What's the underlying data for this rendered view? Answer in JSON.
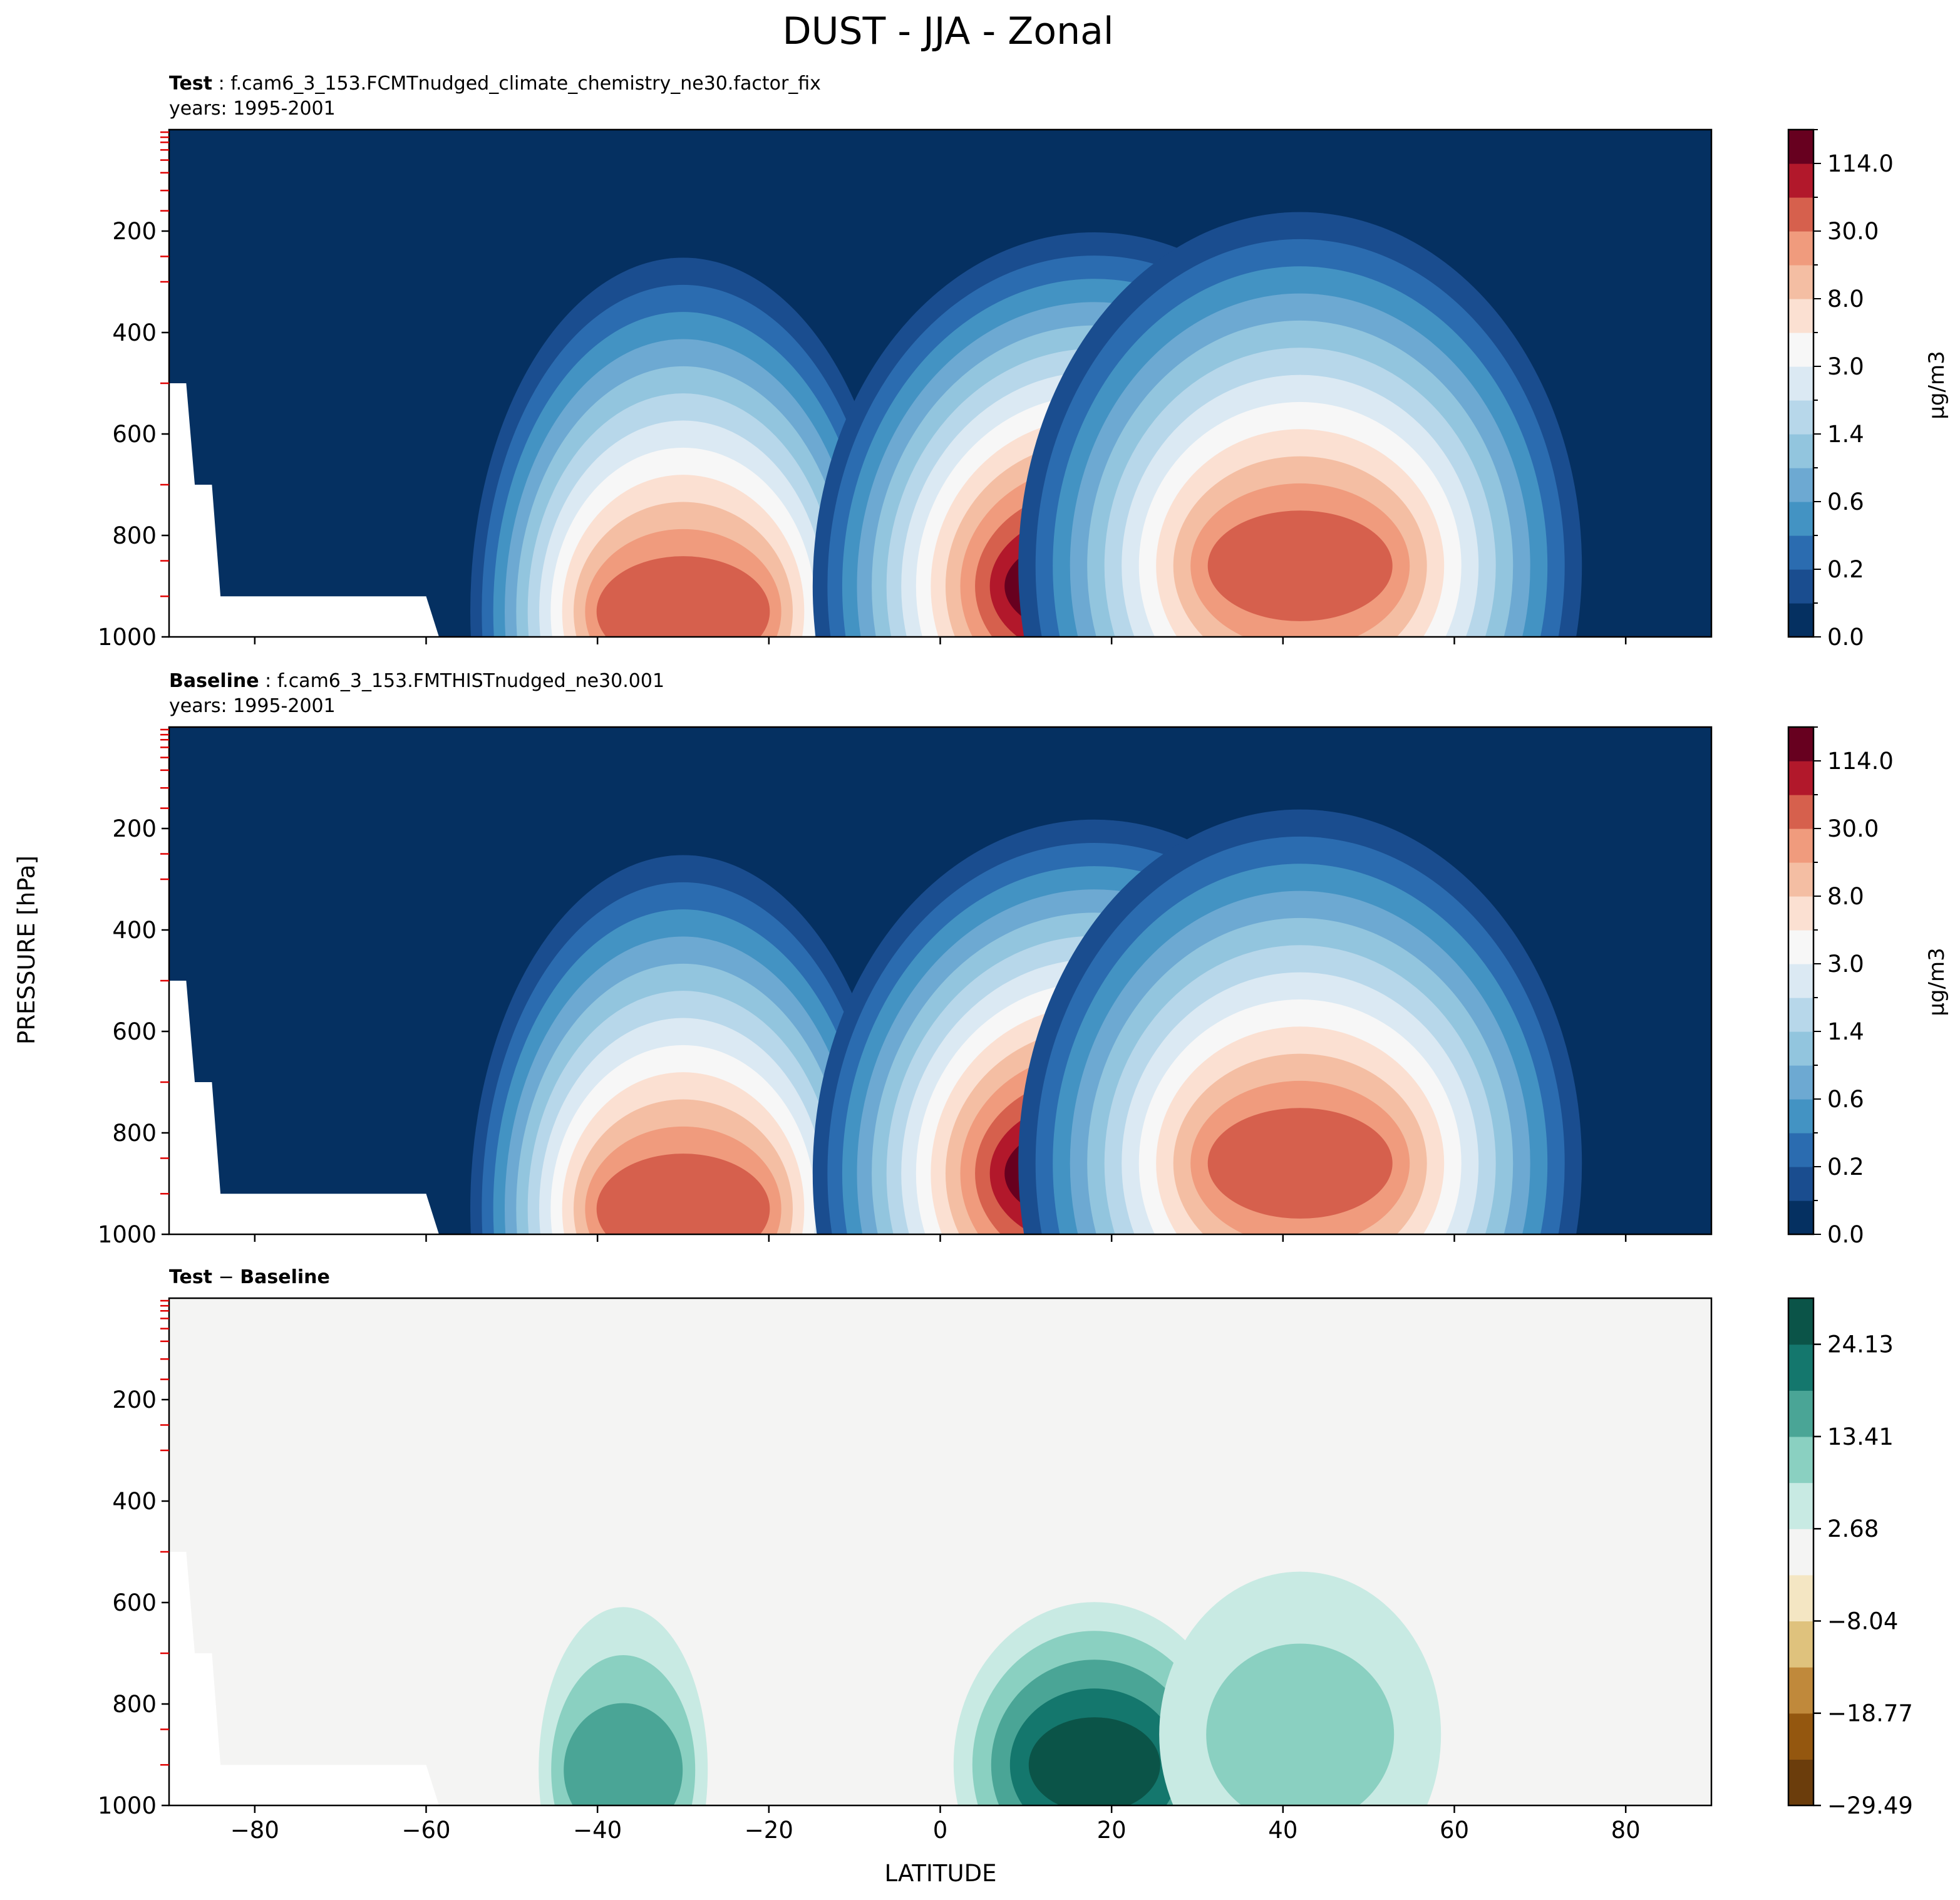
{
  "figure": {
    "title": "DUST - JJA - Zonal",
    "shared_ylabel": "PRESSURE [hPa]",
    "shared_xlabel": "LATITUDE"
  },
  "panels": [
    {
      "id": "test",
      "label_bold": "Test",
      "label_rest": " : f.cam6_3_153.FCMTnudged_climate_chemistry_ne30.factor_fix",
      "years": "years: 1995-2001",
      "colorbar_label": "μg/m3",
      "colorbar_ticks": [
        "0.0",
        "0.2",
        "0.6",
        "1.4",
        "3.0",
        "8.0",
        "30.0",
        "114.0"
      ]
    },
    {
      "id": "baseline",
      "label_bold": "Baseline",
      "label_rest": " : f.cam6_3_153.FMTHISTnudged_ne30.001",
      "years": "years: 1995-2001",
      "colorbar_label": "μg/m3",
      "colorbar_ticks": [
        "0.0",
        "0.2",
        "0.6",
        "1.4",
        "3.0",
        "8.0",
        "30.0",
        "114.0"
      ]
    },
    {
      "id": "diff",
      "label_bold": "Test",
      "label_mid": " − ",
      "label_bold2": "Baseline",
      "colorbar_label": "",
      "colorbar_ticks": [
        "−29.49",
        "−18.77",
        "−8.04",
        "2.68",
        "13.41",
        "24.13"
      ]
    }
  ],
  "chart_data": [
    {
      "type": "heatmap",
      "subtype": "filled-contour",
      "title": "Test : f.cam6_3_153.FCMTnudged_climate_chemistry_ne30.factor_fix",
      "xlim": [
        -90,
        90
      ],
      "ylim": [
        1000,
        0
      ],
      "y_inverted": true,
      "xticks": [
        -80,
        -60,
        -40,
        -20,
        0,
        20,
        40,
        60,
        80
      ],
      "yticks": [
        200,
        400,
        600,
        800,
        1000
      ],
      "levels": [
        0.0,
        0.1,
        0.2,
        0.4,
        0.6,
        1.0,
        1.4,
        2.0,
        3.0,
        5.0,
        8.0,
        15.0,
        30.0,
        60.0,
        114.0,
        200.0
      ],
      "colors": [
        "#053061",
        "#1a4d8f",
        "#2b6cb0",
        "#4393c3",
        "#6da9d2",
        "#92c5de",
        "#b7d7ea",
        "#dbe9f3",
        "#f7f7f7",
        "#fbe0d2",
        "#f4bea3",
        "#f09b7d",
        "#d6604d",
        "#b2182b",
        "#67001f"
      ],
      "maxima": [
        {
          "lat": -30,
          "pressure": 950,
          "value": 30.0
        },
        {
          "lat": 18,
          "pressure": 900,
          "value": 200.0
        },
        {
          "lat": 42,
          "pressure": 860,
          "value": 30.0
        }
      ],
      "missing_region": "surface below terrain near Antarctica (lat -90 to -60, pressure > 500)"
    },
    {
      "type": "heatmap",
      "subtype": "filled-contour",
      "title": "Baseline : f.cam6_3_153.FMTHISTnudged_ne30.001",
      "xlim": [
        -90,
        90
      ],
      "ylim": [
        1000,
        0
      ],
      "y_inverted": true,
      "xticks": [
        -80,
        -60,
        -40,
        -20,
        0,
        20,
        40,
        60,
        80
      ],
      "yticks": [
        200,
        400,
        600,
        800,
        1000
      ],
      "levels": [
        0.0,
        0.1,
        0.2,
        0.4,
        0.6,
        1.0,
        1.4,
        2.0,
        3.0,
        5.0,
        8.0,
        15.0,
        30.0,
        60.0,
        114.0,
        200.0
      ],
      "colors": [
        "#053061",
        "#1a4d8f",
        "#2b6cb0",
        "#4393c3",
        "#6da9d2",
        "#92c5de",
        "#b7d7ea",
        "#dbe9f3",
        "#f7f7f7",
        "#fbe0d2",
        "#f4bea3",
        "#f09b7d",
        "#d6604d",
        "#b2182b",
        "#67001f"
      ],
      "maxima": [
        {
          "lat": -30,
          "pressure": 950,
          "value": 30.0
        },
        {
          "lat": 18,
          "pressure": 880,
          "value": 114.0
        },
        {
          "lat": 42,
          "pressure": 860,
          "value": 30.0
        }
      ]
    },
    {
      "type": "heatmap",
      "subtype": "filled-contour",
      "title": "Test − Baseline",
      "xlabel": "LATITUDE",
      "xlim": [
        -90,
        90
      ],
      "ylim": [
        1000,
        0
      ],
      "y_inverted": true,
      "xticks": [
        -80,
        -60,
        -40,
        -20,
        0,
        20,
        40,
        60,
        80
      ],
      "yticks": [
        200,
        400,
        600,
        800,
        1000
      ],
      "levels": [
        -29.49,
        -24.13,
        -18.77,
        -13.41,
        -8.04,
        -2.68,
        2.68,
        8.04,
        13.41,
        18.77,
        24.13,
        29.49
      ],
      "colors": [
        "#6b3d0c",
        "#94570f",
        "#c0893b",
        "#dfc27d",
        "#f4e6c3",
        "#f4f4f3",
        "#c8eae3",
        "#8ad0c1",
        "#4aa596",
        "#14776d",
        "#0b5448"
      ],
      "maxima": [
        {
          "lat": -37,
          "pressure": 930,
          "value": 13.41
        },
        {
          "lat": 18,
          "pressure": 920,
          "value": 29.49
        },
        {
          "lat": 42,
          "pressure": 860,
          "value": 8.04
        }
      ]
    }
  ]
}
